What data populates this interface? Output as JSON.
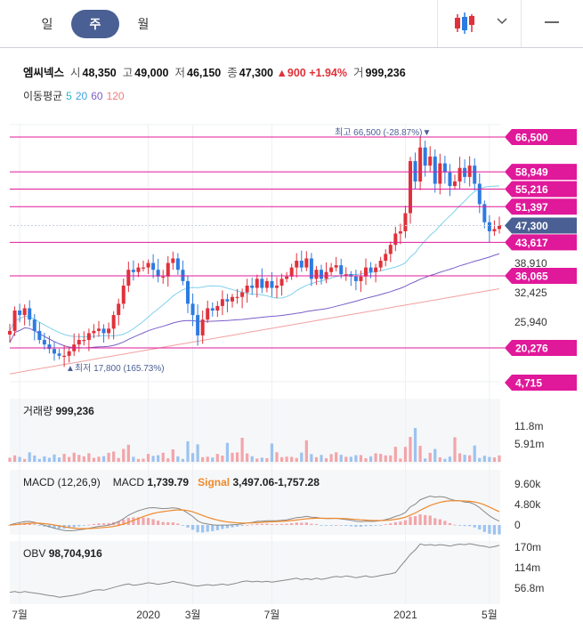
{
  "tabs": [
    {
      "label": "일",
      "active": false
    },
    {
      "label": "주",
      "active": true
    },
    {
      "label": "월",
      "active": false
    }
  ],
  "header": {
    "chart_type_icon": "candlestick-icon",
    "dropdown_icon": "chevron-down-icon",
    "menu_icon": "hamburger-icon"
  },
  "stock": {
    "name": "엠씨넥스",
    "open_label": "시",
    "open": "48,350",
    "high_label": "고",
    "high": "49,000",
    "low_label": "저",
    "low": "46,150",
    "close_label": "종",
    "close": "47,300",
    "change": "▲900",
    "change_pct": "+1.94%",
    "volume_label": "거",
    "volume": "999,236"
  },
  "moving_average": {
    "label": "이동평균",
    "periods": [
      {
        "value": "5",
        "color": "#26b8c4"
      },
      {
        "value": "20",
        "color": "#3fa0e0"
      },
      {
        "value": "60",
        "color": "#7a5fc8"
      },
      {
        "value": "120",
        "color": "#f07c7c"
      }
    ]
  },
  "price_panel": {
    "high_note": "최고 66,500 (-28.87%)▼",
    "low_note": "▲최저 17,800 (165.73%)",
    "axis_labels": [
      {
        "value": 38910,
        "text": "38,910"
      },
      {
        "value": 32425,
        "text": "32,425"
      },
      {
        "value": 25940,
        "text": "25,940"
      }
    ],
    "levels": [
      {
        "value": 66500,
        "text": "66,500",
        "color": "#e0189a"
      },
      {
        "value": 58949,
        "text": "58,949",
        "color": "#e0189a"
      },
      {
        "value": 55216,
        "text": "55,216",
        "color": "#e0189a"
      },
      {
        "value": 51397,
        "text": "51,397",
        "color": "#e0189a"
      },
      {
        "value": 47300,
        "text": "47,300",
        "color": "#4a5f93",
        "current": true
      },
      {
        "value": 43617,
        "text": "43,617",
        "color": "#e0189a"
      },
      {
        "value": 36065,
        "text": "36,065",
        "color": "#e0189a"
      },
      {
        "value": 20276,
        "text": "20,276",
        "color": "#e0189a"
      },
      {
        "value": 4715,
        "text": "4,715",
        "color": "#e0189a",
        "edge": true
      }
    ]
  },
  "volume_panel": {
    "title": "거래량",
    "value": "999,236",
    "axis_labels": [
      "11.8m",
      "5.91m"
    ]
  },
  "macd_panel": {
    "title": "MACD (12,26,9)",
    "macd_label": "MACD",
    "macd_value": "1,739.79",
    "signal_label": "Signal",
    "signal_value": "3,497.06",
    "hist_value": "-1,757.28",
    "axis_labels": [
      "9.60k",
      "4.80k",
      "0"
    ]
  },
  "obv_panel": {
    "title": "OBV",
    "value": "98,704,916",
    "axis_labels": [
      "170m",
      "114m",
      "56.8m"
    ]
  },
  "x_axis": [
    {
      "index": 2,
      "text": "7월"
    },
    {
      "index": 28,
      "text": "2020"
    },
    {
      "index": 37,
      "text": "3월"
    },
    {
      "index": 53,
      "text": "7월"
    },
    {
      "index": 80,
      "text": "2021"
    },
    {
      "index": 97,
      "text": "5월"
    }
  ],
  "colors": {
    "up": "#e0313b",
    "down": "#2d7be0",
    "up_vol": "#f2a5a9",
    "down_vol": "#9cc3ef",
    "level": "#e0189a",
    "current": "#4a5f93"
  },
  "chart_data": {
    "type": "candlestick",
    "x_ticks": [
      "7월",
      "2020",
      "3월",
      "7월",
      "2021",
      "5월"
    ],
    "ohlc_close": [
      24000,
      28500,
      27500,
      29000,
      26500,
      24000,
      22000,
      21000,
      20000,
      19000,
      18500,
      18500,
      19500,
      21000,
      22000,
      22000,
      23500,
      24000,
      24500,
      23500,
      24500,
      27500,
      30000,
      34000,
      37500,
      37000,
      38000,
      38000,
      39000,
      37500,
      36000,
      36000,
      39000,
      40000,
      37500,
      35000,
      30000,
      27500,
      23000,
      26500,
      29000,
      28500,
      29500,
      31000,
      30500,
      31500,
      31500,
      32500,
      34000,
      33500,
      35500,
      33500,
      35000,
      33500,
      34000,
      35500,
      36000,
      38000,
      39500,
      38000,
      40000,
      35500,
      37500,
      35500,
      37000,
      38000,
      38500,
      36500,
      36500,
      36000,
      35000,
      36000,
      38000,
      37000,
      38000,
      39500,
      41000,
      43000,
      45500,
      46000,
      50000,
      61500,
      57000,
      64500,
      60500,
      62500,
      56500,
      61000,
      59000,
      56000,
      57000,
      60000,
      58000,
      60500,
      56500,
      52000,
      48000,
      46000,
      46500,
      47300
    ],
    "high": 66500,
    "low": 17800,
    "volume_note": "weekly volume, last 999,236",
    "macd": {
      "macd": 1739.79,
      "signal": 3497.06,
      "histogram": -1757.28,
      "ylim": [
        -1500,
        9600
      ]
    },
    "obv": {
      "last": 98704916,
      "ylim": [
        0,
        170000000
      ]
    }
  }
}
